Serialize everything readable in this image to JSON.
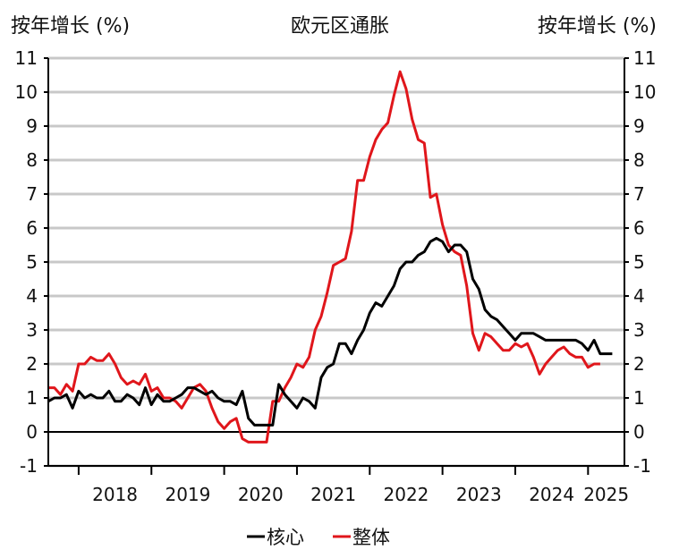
{
  "chart_data": {
    "type": "line",
    "title": "欧元区通胀",
    "ylabel_left": "按年增长 (%)",
    "ylabel_right": "按年增长 (%)",
    "xlabel": "",
    "ylim": [
      -1,
      11
    ],
    "yticks": [
      -1,
      0,
      1,
      2,
      3,
      4,
      5,
      6,
      7,
      8,
      9,
      10,
      11
    ],
    "xlim": [
      2017.583,
      2025.5
    ],
    "xtick_labels": [
      "2018",
      "2019",
      "2020",
      "2021",
      "2022",
      "2023",
      "2024",
      "2025"
    ],
    "grid": true,
    "legend_position": "bottom",
    "series": [
      {
        "name": "核心",
        "color": "#000000",
        "start": 2017.583,
        "step_months": 1,
        "values": [
          0.9,
          1.0,
          1.0,
          1.1,
          0.7,
          1.2,
          1.0,
          1.1,
          1.0,
          1.0,
          1.2,
          0.9,
          0.9,
          1.1,
          1.0,
          0.8,
          1.3,
          0.8,
          1.1,
          0.9,
          0.9,
          1.0,
          1.1,
          1.3,
          1.3,
          1.2,
          1.1,
          1.2,
          1.0,
          0.9,
          0.9,
          0.8,
          1.2,
          0.4,
          0.2,
          0.2,
          0.2,
          0.2,
          1.4,
          1.1,
          0.9,
          0.7,
          1.0,
          0.9,
          0.7,
          1.6,
          1.9,
          2.0,
          2.6,
          2.6,
          2.3,
          2.7,
          3.0,
          3.5,
          3.8,
          3.7,
          4.0,
          4.3,
          4.8,
          5.0,
          5.0,
          5.2,
          5.3,
          5.6,
          5.7,
          5.6,
          5.3,
          5.5,
          5.5,
          5.3,
          4.5,
          4.2,
          3.6,
          3.4,
          3.3,
          3.1,
          2.9,
          2.7,
          2.9,
          2.9,
          2.9,
          2.8,
          2.7,
          2.7,
          2.7,
          2.7,
          2.7,
          2.7,
          2.6,
          2.4,
          2.7,
          2.3,
          2.3,
          2.3
        ]
      },
      {
        "name": "整体",
        "color": "#e0161b",
        "start": 2017.583,
        "step_months": 1,
        "values": [
          1.3,
          1.3,
          1.1,
          1.4,
          1.2,
          2.0,
          2.0,
          2.2,
          2.1,
          2.1,
          2.3,
          2.0,
          1.6,
          1.4,
          1.5,
          1.4,
          1.7,
          1.2,
          1.3,
          1.0,
          1.0,
          0.9,
          0.7,
          1.0,
          1.3,
          1.4,
          1.2,
          0.7,
          0.3,
          0.1,
          0.3,
          0.4,
          -0.2,
          -0.3,
          -0.3,
          -0.3,
          -0.3,
          0.9,
          0.9,
          1.3,
          1.6,
          2.0,
          1.9,
          2.2,
          3.0,
          3.4,
          4.1,
          4.9,
          5.0,
          5.1,
          5.9,
          7.4,
          7.4,
          8.1,
          8.6,
          8.9,
          9.1,
          9.9,
          10.6,
          10.1,
          9.2,
          8.6,
          8.5,
          6.9,
          7.0,
          6.1,
          5.5,
          5.3,
          5.2,
          4.3,
          2.9,
          2.4,
          2.9,
          2.8,
          2.6,
          2.4,
          2.4,
          2.6,
          2.5,
          2.6,
          2.2,
          1.7,
          2.0,
          2.2,
          2.4,
          2.5,
          2.3,
          2.2,
          2.2,
          1.9,
          2.0,
          2.0
        ]
      }
    ],
    "legend": [
      {
        "label": "核心",
        "color": "#000000"
      },
      {
        "label": "整体",
        "color": "#e0161b"
      }
    ]
  }
}
